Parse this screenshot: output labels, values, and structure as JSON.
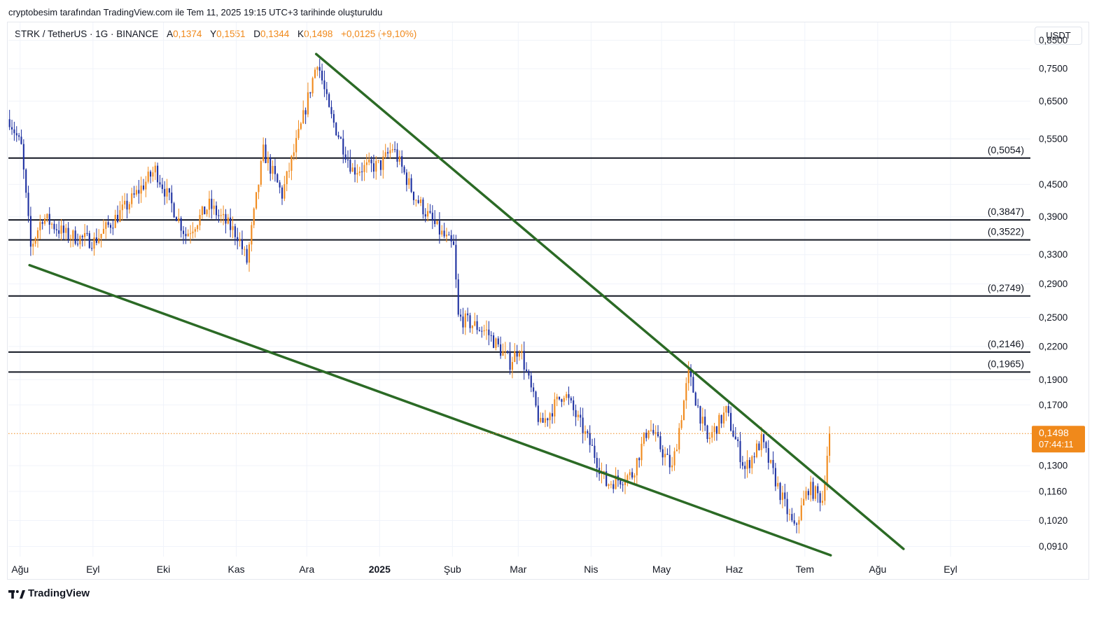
{
  "caption": "cryptobesim tarafından TradingView.com ile Tem 11, 2025 19:15 UTC+3 tarihinde oluşturuldu",
  "legend": {
    "symbol": "STRK / TetherUS · 1G · BINANCE",
    "open_label": "A",
    "open": "0,1374",
    "high_label": "Y",
    "high": "0,1551",
    "low_label": "D",
    "low": "0,1344",
    "close_label": "K",
    "close": "0,1498",
    "change": "+0,0125 (+9,10%)"
  },
  "currency": "USDT",
  "brand": "TradingView",
  "colors": {
    "up": "#f0891b",
    "down": "#1c2fa0",
    "trendline": "#2b6a25",
    "level": "#131722",
    "price_tag": "#f0891b",
    "grid": "#f0f3fa"
  },
  "chart_data": {
    "type": "candlestick",
    "symbol": "STRK/USDT",
    "interval": "1D",
    "scale": "log",
    "y_ticks": [
      "0,8500",
      "0,7500",
      "0,6500",
      "0,5500",
      "0,4500",
      "0,3900",
      "0,3300",
      "0,2900",
      "0,2500",
      "0,2200",
      "0,1900",
      "0,1700",
      "0,1300",
      "0,1160",
      "0,1020",
      "0,0910"
    ],
    "x_ticks": [
      "Ağu",
      "Eyl",
      "Eki",
      "Kas",
      "Ara",
      "2025",
      "Şub",
      "Mar",
      "Nis",
      "May",
      "Haz",
      "Tem",
      "Ağu",
      "Eyl"
    ],
    "x_range": [
      "2024-07-27",
      "2025-10-05"
    ],
    "y_range": [
      0.087,
      0.92
    ],
    "last_price": "0,1498",
    "countdown": "07:44:11",
    "horizontal_levels": [
      {
        "value": 0.5054,
        "label": "(0,5054)"
      },
      {
        "value": 0.3847,
        "label": "(0,3847)"
      },
      {
        "value": 0.3522,
        "label": "(0,3522)"
      },
      {
        "value": 0.2749,
        "label": "(0,2749)"
      },
      {
        "value": 0.2146,
        "label": "(0,2146)"
      },
      {
        "value": 0.1965,
        "label": "(0,1965)"
      }
    ],
    "trendlines": [
      {
        "name": "upper",
        "from": {
          "date": "2024-12-05",
          "value": 0.8
        },
        "to": {
          "date": "2025-08-12",
          "value": 0.09
        }
      },
      {
        "name": "lower",
        "from": {
          "date": "2024-08-05",
          "value": 0.315
        },
        "to": {
          "date": "2025-07-12",
          "value": 0.0875
        }
      }
    ],
    "closes": [
      {
        "date": "2024-07-27",
        "value": 0.6
      },
      {
        "date": "2024-08-01",
        "value": 0.53
      },
      {
        "date": "2024-08-05",
        "value": 0.34
      },
      {
        "date": "2024-08-10",
        "value": 0.39
      },
      {
        "date": "2024-08-20",
        "value": 0.36
      },
      {
        "date": "2024-09-01",
        "value": 0.35
      },
      {
        "date": "2024-09-15",
        "value": 0.41
      },
      {
        "date": "2024-09-27",
        "value": 0.48
      },
      {
        "date": "2024-10-10",
        "value": 0.36
      },
      {
        "date": "2024-10-20",
        "value": 0.41
      },
      {
        "date": "2024-11-01",
        "value": 0.36
      },
      {
        "date": "2024-11-05",
        "value": 0.32
      },
      {
        "date": "2024-11-12",
        "value": 0.52
      },
      {
        "date": "2024-11-20",
        "value": 0.43
      },
      {
        "date": "2024-11-28",
        "value": 0.58
      },
      {
        "date": "2024-12-05",
        "value": 0.78
      },
      {
        "date": "2024-12-10",
        "value": 0.62
      },
      {
        "date": "2024-12-20",
        "value": 0.48
      },
      {
        "date": "2025-01-01",
        "value": 0.49
      },
      {
        "date": "2025-01-06",
        "value": 0.53
      },
      {
        "date": "2025-01-15",
        "value": 0.43
      },
      {
        "date": "2025-01-25",
        "value": 0.37
      },
      {
        "date": "2025-02-01",
        "value": 0.34
      },
      {
        "date": "2025-02-03",
        "value": 0.25
      },
      {
        "date": "2025-02-15",
        "value": 0.235
      },
      {
        "date": "2025-02-25",
        "value": 0.205
      },
      {
        "date": "2025-03-01",
        "value": 0.22
      },
      {
        "date": "2025-03-10",
        "value": 0.155
      },
      {
        "date": "2025-03-20",
        "value": 0.18
      },
      {
        "date": "2025-04-01",
        "value": 0.14
      },
      {
        "date": "2025-04-07",
        "value": 0.12
      },
      {
        "date": "2025-04-18",
        "value": 0.125
      },
      {
        "date": "2025-04-25",
        "value": 0.155
      },
      {
        "date": "2025-05-05",
        "value": 0.128
      },
      {
        "date": "2025-05-12",
        "value": 0.195
      },
      {
        "date": "2025-05-20",
        "value": 0.145
      },
      {
        "date": "2025-05-28",
        "value": 0.165
      },
      {
        "date": "2025-06-05",
        "value": 0.128
      },
      {
        "date": "2025-06-12",
        "value": 0.145
      },
      {
        "date": "2025-06-20",
        "value": 0.115
      },
      {
        "date": "2025-06-26",
        "value": 0.098
      },
      {
        "date": "2025-07-02",
        "value": 0.118
      },
      {
        "date": "2025-07-08",
        "value": 0.112
      },
      {
        "date": "2025-07-10",
        "value": 0.137
      },
      {
        "date": "2025-07-11",
        "value": 0.1498
      }
    ]
  }
}
